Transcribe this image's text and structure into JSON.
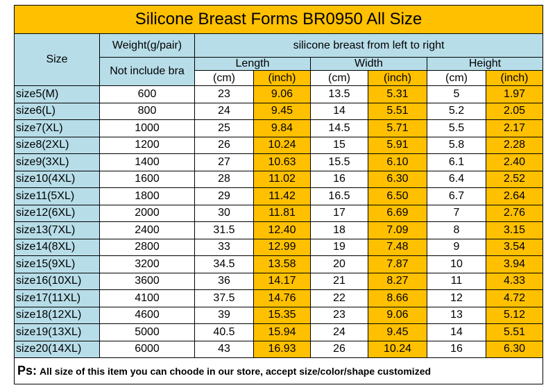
{
  "title": "Silicone Breast Forms BR0950 All Size",
  "header": {
    "size": "Size",
    "weight": "Weight(g/pair)",
    "weight_note": "Not include bra",
    "group": "silicone breast from left to right",
    "dimensions": [
      "Length",
      "Width",
      "Height"
    ],
    "units": [
      "(cm)",
      "(inch)"
    ]
  },
  "rows": [
    [
      "size5(M)",
      "600",
      "23",
      "9.06",
      "13.5",
      "5.31",
      "5",
      "1.97"
    ],
    [
      "size6(L)",
      "800",
      "24",
      "9.45",
      "14",
      "5.51",
      "5.2",
      "2.05"
    ],
    [
      "size7(XL)",
      "1000",
      "25",
      "9.84",
      "14.5",
      "5.71",
      "5.5",
      "2.17"
    ],
    [
      "size8(2XL)",
      "1200",
      "26",
      "10.24",
      "15",
      "5.91",
      "5.8",
      "2.28"
    ],
    [
      "size9(3XL)",
      "1400",
      "27",
      "10.63",
      "15.5",
      "6.10",
      "6.1",
      "2.40"
    ],
    [
      "size10(4XL)",
      "1600",
      "28",
      "11.02",
      "16",
      "6.30",
      "6.4",
      "2.52"
    ],
    [
      "size11(5XL)",
      "1800",
      "29",
      "11.42",
      "16.5",
      "6.50",
      "6.7",
      "2.64"
    ],
    [
      "size12(6XL)",
      "2000",
      "30",
      "11.81",
      "17",
      "6.69",
      "7",
      "2.76"
    ],
    [
      "size13(7XL)",
      "2400",
      "31.5",
      "12.40",
      "18",
      "7.09",
      "8",
      "3.15"
    ],
    [
      "size14(8XL)",
      "2800",
      "33",
      "12.99",
      "19",
      "7.48",
      "9",
      "3.54"
    ],
    [
      "size15(9XL)",
      "3200",
      "34.5",
      "13.58",
      "20",
      "7.87",
      "10",
      "3.94"
    ],
    [
      "size16(10XL)",
      "3600",
      "36",
      "14.17",
      "21",
      "8.27",
      "11",
      "4.33"
    ],
    [
      "size17(11XL)",
      "4100",
      "37.5",
      "14.76",
      "22",
      "8.66",
      "12",
      "4.72"
    ],
    [
      "size18(12XL)",
      "4600",
      "39",
      "15.35",
      "23",
      "9.06",
      "13",
      "5.12"
    ],
    [
      "size19(13XL)",
      "5000",
      "40.5",
      "15.94",
      "24",
      "9.45",
      "14",
      "5.51"
    ],
    [
      "size20(14XL)",
      "6000",
      "43",
      "16.93",
      "26",
      "10.24",
      "16",
      "6.30"
    ]
  ],
  "footer": {
    "label": "Ps:",
    "text": "All size of this item you can choode in our store, accept size/color/shape customized"
  }
}
